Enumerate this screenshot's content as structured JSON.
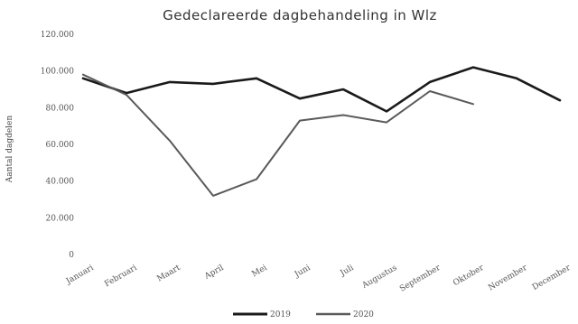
{
  "chart_data": {
    "type": "line",
    "title": "Gedeclareerde dagbehandeling in Wlz",
    "ylabel": "Aantal dagdelen",
    "xlabel": "",
    "categories": [
      "Januari",
      "Februari",
      "Maart",
      "April",
      "Mei",
      "Juni",
      "Juli",
      "Augustus",
      "September",
      "Oktober",
      "November",
      "December"
    ],
    "yticks": [
      "0",
      "20.000",
      "40.000",
      "60.000",
      "80.000",
      "100.000",
      "120.000"
    ],
    "ylim": [
      0,
      120000
    ],
    "grid": false,
    "legend_position": "bottom",
    "series": [
      {
        "name": "2019",
        "color": "#1a1a1a",
        "values": [
          96000,
          88000,
          94000,
          93000,
          96000,
          85000,
          90000,
          78000,
          94000,
          102000,
          96000,
          84000
        ]
      },
      {
        "name": "2020",
        "color": "#5a5a5a",
        "values": [
          98000,
          87000,
          62000,
          32000,
          41000,
          73000,
          76000,
          72000,
          89000,
          82000,
          null,
          null
        ]
      }
    ]
  }
}
